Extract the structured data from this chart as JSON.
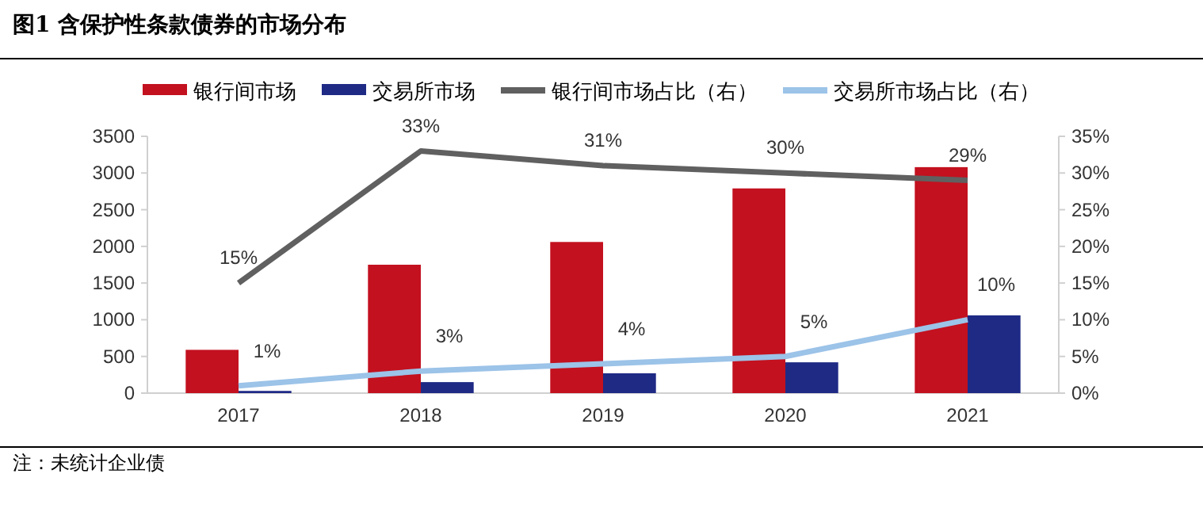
{
  "chart_data": {
    "type": "bar",
    "title": "图1  含保护性条款债券的市场分布",
    "categories": [
      "2017",
      "2018",
      "2019",
      "2020",
      "2021"
    ],
    "series": [
      {
        "name": "银行间市场",
        "color": "#c3111f",
        "values": [
          590,
          1750,
          2060,
          2790,
          3080
        ]
      },
      {
        "name": "交易所市场",
        "color": "#1f2a85",
        "values": [
          30,
          150,
          270,
          420,
          1060
        ]
      },
      {
        "name": "银行间市场占比（右）",
        "type": "line",
        "axis": "y2",
        "color": "#606060",
        "values": [
          15,
          33,
          31,
          30,
          29
        ],
        "value_labels": [
          "15%",
          "33%",
          "31%",
          "30%",
          "29%"
        ]
      },
      {
        "name": "交易所市场占比（右）",
        "type": "line",
        "axis": "y2",
        "color": "#9cc3e8",
        "values": [
          1,
          3,
          4,
          5,
          10
        ],
        "value_labels": [
          "1%",
          "3%",
          "4%",
          "5%",
          "10%"
        ]
      }
    ],
    "ylim": [
      0,
      3500
    ],
    "yticks": [
      0,
      500,
      1000,
      1500,
      2000,
      2500,
      3000,
      3500
    ],
    "y2lim": [
      0,
      35
    ],
    "y2ticks": [
      {
        "value": 0,
        "label": "0%"
      },
      {
        "value": 5,
        "label": "5%"
      },
      {
        "value": 10,
        "label": "10%"
      },
      {
        "value": 15,
        "label": "15%"
      },
      {
        "value": 20,
        "label": "20%"
      },
      {
        "value": 25,
        "label": "25%"
      },
      {
        "value": 30,
        "label": "30%"
      },
      {
        "value": 35,
        "label": "35%"
      }
    ],
    "legend": "top",
    "grid": false,
    "annotations": [
      "注：未统计企业债"
    ]
  }
}
